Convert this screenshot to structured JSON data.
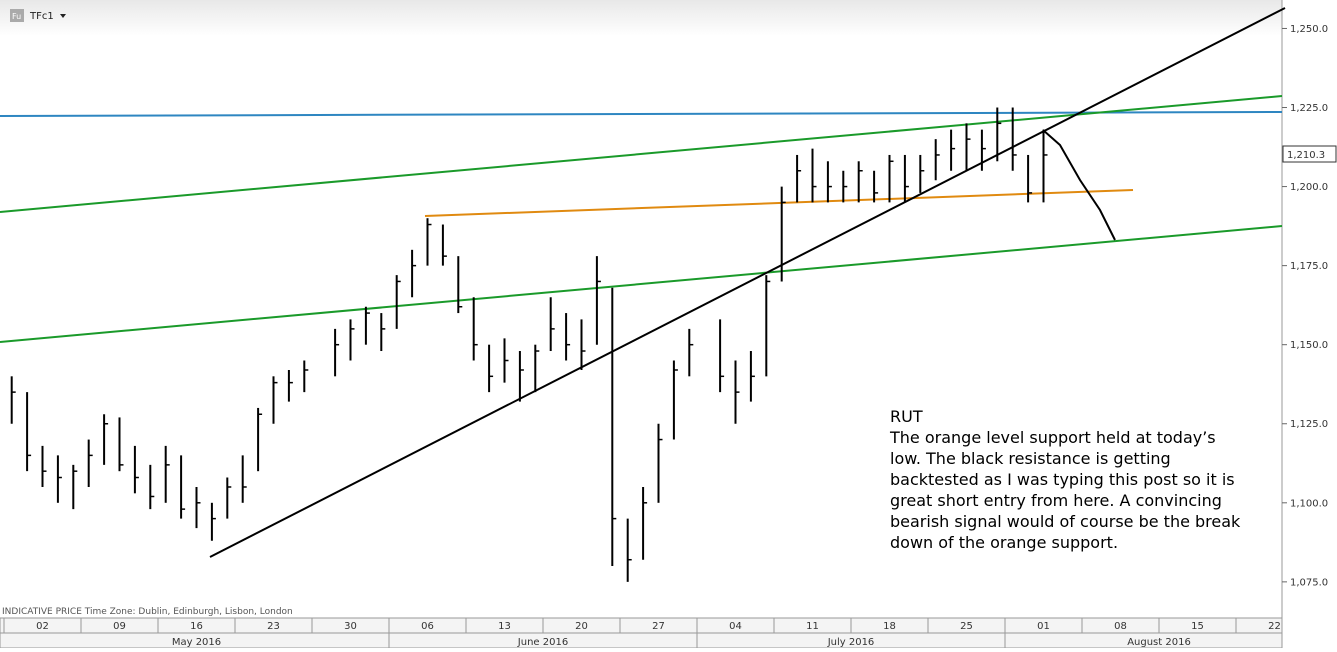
{
  "chart_data": {
    "type": "hlc",
    "symbol": "TFc1",
    "source_note": "INDICATIVE PRICE   Time Zone: Dublin, Edinburgh, Lisbon, London",
    "annotation": {
      "title": "RUT",
      "lines": [
        "The orange level support held at today’s",
        "low. The black resistance is getting",
        "backtested as I was typing this post so it is",
        "great short entry from here. A convincing",
        "bearish signal would of course be the break",
        "down of the orange support."
      ]
    },
    "last_price": {
      "value": 1210.3,
      "label": "1,210.3"
    },
    "months": [
      "May 2016",
      "June 2016",
      "July 2016",
      "August 2016"
    ],
    "categories": [
      "02",
      null,
      null,
      null,
      null,
      "09",
      null,
      null,
      null,
      null,
      "16",
      null,
      null,
      null,
      null,
      "23",
      null,
      null,
      null,
      null,
      "30",
      null,
      null,
      null,
      null,
      "06",
      null,
      null,
      null,
      null,
      "13",
      null,
      null,
      null,
      null,
      "20",
      null,
      null,
      null,
      null,
      "27",
      null,
      null,
      null,
      null,
      "04",
      null,
      null,
      null,
      null,
      "11",
      null,
      null,
      null,
      null,
      "18",
      null,
      null,
      null,
      null,
      "25",
      null,
      null,
      null,
      null,
      "01",
      null,
      null,
      null,
      null,
      "08",
      null,
      null,
      null,
      null,
      "15",
      null,
      null,
      null,
      null,
      "22",
      null,
      null,
      null,
      null
    ],
    "high": [
      1140,
      1135,
      1118,
      1115,
      1112,
      1120,
      1128,
      1127,
      1118,
      1112,
      1118,
      1115,
      1105,
      1100,
      1108,
      1115,
      1130,
      1140,
      1142,
      1145,
      null,
      1155,
      1158,
      1162,
      1160,
      1172,
      1180,
      1190,
      1188,
      1178,
      1165,
      1150,
      1152,
      1148,
      1150,
      1165,
      1160,
      1158,
      1178,
      1168,
      1095,
      1105,
      1125,
      1145,
      1155,
      null,
      1158,
      1145,
      1148,
      1172,
      1200,
      1210,
      1212,
      1208,
      1205,
      1208,
      1205,
      1210,
      1210,
      1210,
      1215,
      1218,
      1220,
      1218,
      1225,
      1225,
      1210,
      1218,
      null,
      null,
      null,
      null,
      null,
      null,
      null,
      null,
      null,
      null,
      null,
      null,
      null,
      null,
      null,
      null,
      null
    ],
    "low": [
      1125,
      1110,
      1105,
      1100,
      1098,
      1105,
      1112,
      1110,
      1103,
      1098,
      1100,
      1095,
      1092,
      1088,
      1095,
      1100,
      1110,
      1125,
      1132,
      1135,
      null,
      1140,
      1145,
      1150,
      1148,
      1155,
      1165,
      1175,
      1175,
      1160,
      1145,
      1135,
      1138,
      1132,
      1135,
      1148,
      1145,
      1142,
      1150,
      1080,
      1075,
      1082,
      1100,
      1120,
      1140,
      null,
      1135,
      1125,
      1132,
      1140,
      1170,
      1195,
      1195,
      1195,
      1195,
      1195,
      1195,
      1195,
      1195,
      1198,
      1202,
      1205,
      1205,
      1205,
      1208,
      1205,
      1195,
      1195,
      null,
      null,
      null,
      null,
      null,
      null,
      null,
      null,
      null,
      null,
      null,
      null,
      null,
      null,
      null,
      null,
      null
    ],
    "close": [
      1135,
      1115,
      1110,
      1108,
      1110,
      1115,
      1125,
      1112,
      1108,
      1102,
      1112,
      1098,
      1100,
      1095,
      1105,
      1105,
      1128,
      1138,
      1138,
      1142,
      null,
      1150,
      1155,
      1160,
      1155,
      1170,
      1175,
      1188,
      1178,
      1162,
      1150,
      1140,
      1145,
      1142,
      1148,
      1155,
      1150,
      1148,
      1170,
      1095,
      1082,
      1100,
      1120,
      1142,
      1150,
      null,
      1140,
      1135,
      1140,
      1170,
      1195,
      1205,
      1200,
      1200,
      1200,
      1205,
      1198,
      1208,
      1200,
      1205,
      1210,
      1212,
      1215,
      1212,
      1220,
      1210,
      1198,
      1210,
      null,
      null,
      null,
      null,
      null,
      null,
      null,
      null,
      null,
      null,
      null,
      null,
      null,
      null,
      null,
      null,
      null
    ],
    "color": "#000000",
    "ylim": [
      1068,
      1259
    ],
    "yticks": [
      {
        "value": 1075,
        "label": "1,075.0"
      },
      {
        "value": 1100,
        "label": "1,100.0"
      },
      {
        "value": 1125,
        "label": "1,125.0"
      },
      {
        "value": 1150,
        "label": "1,150.0"
      },
      {
        "value": 1175,
        "label": "1,175.0"
      },
      {
        "value": 1200,
        "label": "1,200.0"
      },
      {
        "value": 1225,
        "label": "1,225.0"
      },
      {
        "value": 1250,
        "label": "1,250.0"
      }
    ]
  }
}
